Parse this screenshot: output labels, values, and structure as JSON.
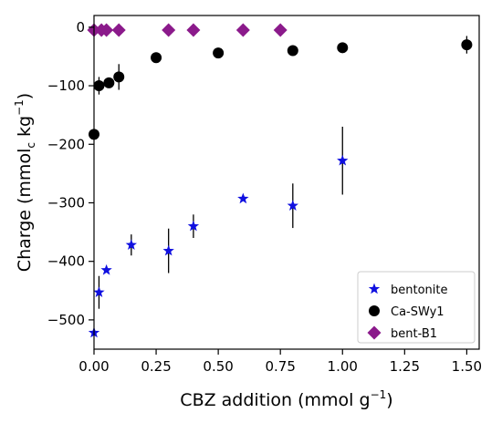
{
  "chart_data": {
    "type": "scatter",
    "xlabel": "CBZ addition (mmol g",
    "xlabel_sup": "−1",
    "xlabel_end": ")",
    "ylabel_main": "Charge (mmol",
    "ylabel_sub": "c",
    "ylabel_mid": " kg",
    "ylabel_sup": "−1",
    "ylabel_end": ")",
    "xlim": [
      0,
      1.55
    ],
    "ylim": [
      -550,
      20
    ],
    "x_ticks": [
      0,
      0.25,
      0.5,
      0.75,
      1.0,
      1.25,
      1.5
    ],
    "x_tick_labels": [
      "0.00",
      "0.25",
      "0.50",
      "0.75",
      "1.00",
      "1.25",
      "1.50"
    ],
    "y_ticks": [
      0,
      -100,
      -200,
      -300,
      -400,
      -500
    ],
    "y_tick_labels": [
      "0",
      "−100",
      "−200",
      "−300",
      "−400",
      "−500"
    ],
    "grid": false,
    "legend_placement": "bottom-right",
    "series": [
      {
        "name": "bentonite",
        "marker": "star",
        "color": "#1010e0",
        "points": [
          {
            "x": 0.0,
            "y": -522,
            "err": 0
          },
          {
            "x": 0.02,
            "y": -453,
            "err": 28
          },
          {
            "x": 0.05,
            "y": -415,
            "err": 0
          },
          {
            "x": 0.15,
            "y": -372,
            "err": 18
          },
          {
            "x": 0.3,
            "y": -382,
            "err": 38
          },
          {
            "x": 0.4,
            "y": -340,
            "err": 20
          },
          {
            "x": 0.6,
            "y": -293,
            "err": 0
          },
          {
            "x": 0.8,
            "y": -305,
            "err": 38
          },
          {
            "x": 1.0,
            "y": -228,
            "err": 58
          }
        ]
      },
      {
        "name": "Ca-SWy1",
        "marker": "circle",
        "color": "#000000",
        "points": [
          {
            "x": 0.0,
            "y": -183,
            "err": 0
          },
          {
            "x": 0.02,
            "y": -100,
            "err": 15
          },
          {
            "x": 0.06,
            "y": -95,
            "err": 0
          },
          {
            "x": 0.1,
            "y": -85,
            "err": 22
          },
          {
            "x": 0.25,
            "y": -52,
            "err": 0
          },
          {
            "x": 0.5,
            "y": -44,
            "err": 0
          },
          {
            "x": 0.8,
            "y": -40,
            "err": 0
          },
          {
            "x": 1.0,
            "y": -35,
            "err": 0
          },
          {
            "x": 1.5,
            "y": -30,
            "err": 15
          }
        ]
      },
      {
        "name": "bent-B1",
        "marker": "diamond",
        "color": "#8b1a8b",
        "points": [
          {
            "x": 0.0,
            "y": -5,
            "err": 0
          },
          {
            "x": 0.03,
            "y": -5,
            "err": 0
          },
          {
            "x": 0.05,
            "y": -5,
            "err": 0
          },
          {
            "x": 0.1,
            "y": -5,
            "err": 0
          },
          {
            "x": 0.3,
            "y": -5,
            "err": 0
          },
          {
            "x": 0.4,
            "y": -5,
            "err": 0
          },
          {
            "x": 0.6,
            "y": -5,
            "err": 0
          },
          {
            "x": 0.75,
            "y": -5,
            "err": 0
          }
        ]
      }
    ]
  }
}
